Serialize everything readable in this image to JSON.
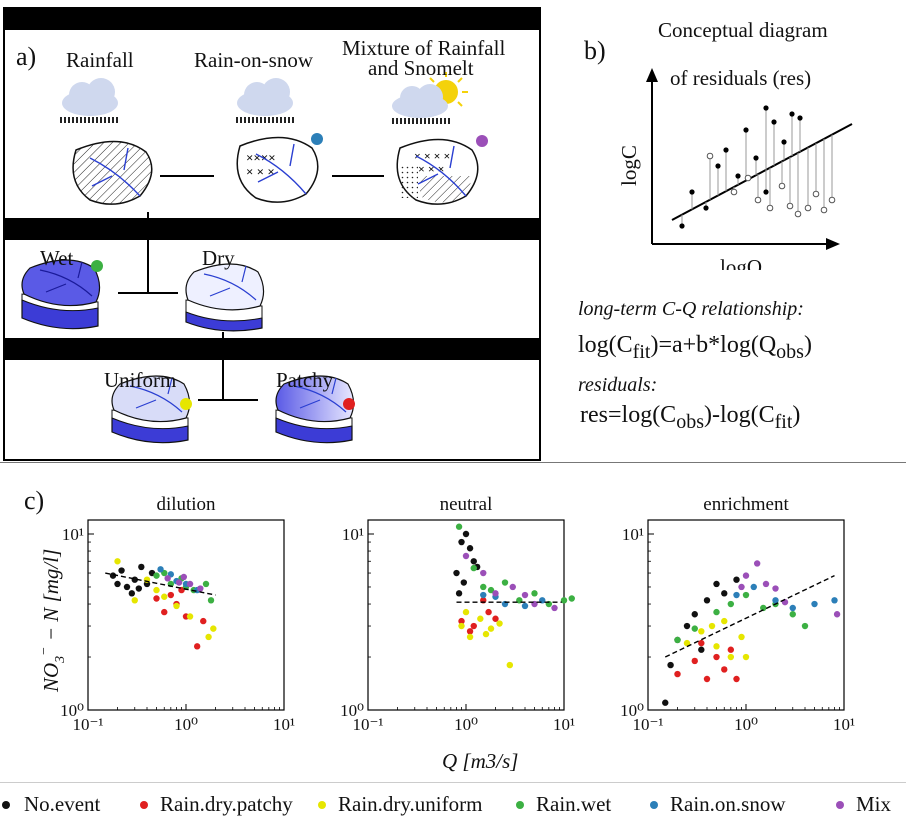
{
  "panel_a": {
    "label": "a)",
    "row1": {
      "rainfall": "Rainfall",
      "rain_on_snow": "Rain-on-snow",
      "mixture_line1": "Mixture of Rainfall",
      "mixture_line2": "and Snomelt"
    },
    "row2": {
      "wet": "Wet",
      "dry": "Dry"
    },
    "row3": {
      "uniform": "Uniform",
      "patchy": "Patchy"
    }
  },
  "panel_b": {
    "label": "b)",
    "title_line1": "Conceptual diagram",
    "title_line2": "of residuals (res)",
    "ylabel": "logC",
    "xlabel": "logQ",
    "ltr_label": "long-term C-Q relationship:",
    "eq_prefix": "log(C",
    "eq_sub1": "fit",
    "eq_mid": ")=a+b*log(Q",
    "eq_sub2": "obs",
    "eq_suffix": ")",
    "res_label": "residuals:",
    "res_prefix": "res=log(C",
    "res_sub1": "obs",
    "res_mid": ")-log(C",
    "res_sub2": "fit",
    "res_suffix": ")"
  },
  "panel_c": {
    "label": "c)",
    "ylabel": "NO3- - N [mg/l]",
    "xlabel": "Q [m3/s]"
  },
  "colors": {
    "no_event": "#111111",
    "rain_dry_patchy": "#e02020",
    "rain_dry_uniform": "#e6e600",
    "rain_wet": "#3cb043",
    "rain_on_snow": "#2c7fb8",
    "mixture": "#9b4fb8",
    "catchment_fill": "#5a5ae6"
  },
  "chart_data": [
    {
      "type": "scatter",
      "title": "dilution",
      "xscale": "log",
      "yscale": "log",
      "xlim": [
        0.1,
        10
      ],
      "ylim": [
        1,
        10
      ],
      "xticks": [
        "10⁻¹",
        "10⁰",
        "10¹"
      ],
      "yticks": [
        "10⁰",
        "10¹"
      ],
      "trend": [
        [
          0.15,
          6.0
        ],
        [
          2.0,
          4.5
        ]
      ],
      "series": [
        {
          "name": "No.event",
          "points": [
            [
              0.18,
              5.8
            ],
            [
              0.22,
              6.2
            ],
            [
              0.25,
              5.0
            ],
            [
              0.3,
              5.5
            ],
            [
              0.35,
              6.5
            ],
            [
              0.28,
              4.6
            ],
            [
              0.4,
              5.2
            ],
            [
              0.45,
              6.0
            ],
            [
              0.2,
              5.2
            ],
            [
              0.33,
              4.9
            ]
          ]
        },
        {
          "name": "Rain.dry.patchy",
          "points": [
            [
              0.6,
              3.6
            ],
            [
              0.8,
              4.0
            ],
            [
              1.0,
              3.4
            ],
            [
              1.3,
              2.3
            ],
            [
              0.5,
              4.3
            ],
            [
              0.9,
              4.8
            ],
            [
              1.5,
              3.2
            ],
            [
              0.7,
              4.5
            ]
          ]
        },
        {
          "name": "Rain.dry.uniform",
          "points": [
            [
              0.2,
              7.0
            ],
            [
              0.3,
              4.2
            ],
            [
              0.5,
              4.8
            ],
            [
              0.8,
              3.9
            ],
            [
              1.1,
              3.4
            ],
            [
              1.7,
              2.6
            ],
            [
              1.9,
              2.9
            ],
            [
              0.4,
              5.5
            ],
            [
              0.6,
              4.4
            ]
          ]
        },
        {
          "name": "Rain.wet",
          "points": [
            [
              0.5,
              5.8
            ],
            [
              0.7,
              5.2
            ],
            [
              0.9,
              5.6
            ],
            [
              1.2,
              4.8
            ],
            [
              1.6,
              5.2
            ],
            [
              1.8,
              4.2
            ],
            [
              0.6,
              6.0
            ],
            [
              1.0,
              5.0
            ]
          ]
        },
        {
          "name": "Rain.on.snow",
          "points": [
            [
              0.55,
              6.3
            ],
            [
              0.8,
              5.4
            ],
            [
              1.0,
              5.2
            ],
            [
              1.3,
              4.8
            ],
            [
              0.7,
              5.9
            ]
          ]
        },
        {
          "name": "Mixture",
          "points": [
            [
              0.65,
              5.6
            ],
            [
              0.85,
              5.3
            ],
            [
              1.1,
              5.2
            ],
            [
              1.4,
              4.9
            ],
            [
              0.95,
              5.7
            ]
          ]
        }
      ]
    },
    {
      "type": "scatter",
      "title": "neutral",
      "xscale": "log",
      "yscale": "log",
      "xlim": [
        0.1,
        10
      ],
      "ylim": [
        1,
        10
      ],
      "xticks": [
        "10⁻¹",
        "10⁰",
        "10¹"
      ],
      "yticks": [
        "10⁰",
        "10¹"
      ],
      "trend": [
        [
          0.8,
          4.1
        ],
        [
          9.5,
          4.1
        ]
      ],
      "series": [
        {
          "name": "No.event",
          "points": [
            [
              0.8,
              6.0
            ],
            [
              0.9,
              9.0
            ],
            [
              1.0,
              10.0
            ],
            [
              1.2,
              7.0
            ],
            [
              0.85,
              4.6
            ],
            [
              1.1,
              8.3
            ],
            [
              0.95,
              5.3
            ],
            [
              1.3,
              6.5
            ]
          ]
        },
        {
          "name": "Rain.dry.patchy",
          "points": [
            [
              0.9,
              3.2
            ],
            [
              1.2,
              3.0
            ],
            [
              1.5,
              4.2
            ],
            [
              2.0,
              3.3
            ],
            [
              1.1,
              2.8
            ],
            [
              1.7,
              3.6
            ]
          ]
        },
        {
          "name": "Rain.dry.uniform",
          "points": [
            [
              0.9,
              3.0
            ],
            [
              1.1,
              2.6
            ],
            [
              1.4,
              3.3
            ],
            [
              1.8,
              2.9
            ],
            [
              2.2,
              3.1
            ],
            [
              2.8,
              1.8
            ],
            [
              1.0,
              3.6
            ],
            [
              1.6,
              2.7
            ]
          ]
        },
        {
          "name": "Rain.wet",
          "points": [
            [
              0.85,
              11.0
            ],
            [
              1.2,
              6.4
            ],
            [
              1.8,
              4.8
            ],
            [
              2.5,
              5.3
            ],
            [
              3.5,
              4.2
            ],
            [
              5.0,
              4.6
            ],
            [
              7.0,
              4.0
            ],
            [
              10.0,
              4.2
            ],
            [
              12.0,
              4.3
            ],
            [
              1.5,
              5.0
            ]
          ]
        },
        {
          "name": "Rain.on.snow",
          "points": [
            [
              1.5,
              4.5
            ],
            [
              2.5,
              4.0
            ],
            [
              4.0,
              3.9
            ],
            [
              6.0,
              4.2
            ],
            [
              2.0,
              4.4
            ]
          ]
        },
        {
          "name": "Mixture",
          "points": [
            [
              1.0,
              7.5
            ],
            [
              1.5,
              6.0
            ],
            [
              2.0,
              4.6
            ],
            [
              3.0,
              5.0
            ],
            [
              5.0,
              4.0
            ],
            [
              8.0,
              3.8
            ],
            [
              4.0,
              4.5
            ]
          ]
        }
      ]
    },
    {
      "type": "scatter",
      "title": "enrichment",
      "xscale": "log",
      "yscale": "log",
      "xlim": [
        0.1,
        10
      ],
      "ylim": [
        1,
        10
      ],
      "xticks": [
        "10⁻¹",
        "10⁰",
        "10¹"
      ],
      "yticks": [
        "10⁰",
        "10¹"
      ],
      "trend": [
        [
          0.15,
          2.0
        ],
        [
          8.0,
          5.8
        ]
      ],
      "series": [
        {
          "name": "No.event",
          "points": [
            [
              0.15,
              1.1
            ],
            [
              0.17,
              1.8
            ],
            [
              0.2,
              2.5
            ],
            [
              0.25,
              3.0
            ],
            [
              0.3,
              3.5
            ],
            [
              0.4,
              4.2
            ],
            [
              0.5,
              5.2
            ],
            [
              0.6,
              4.6
            ],
            [
              0.35,
              2.2
            ],
            [
              0.8,
              5.5
            ]
          ]
        },
        {
          "name": "Rain.dry.patchy",
          "points": [
            [
              0.2,
              1.6
            ],
            [
              0.3,
              1.9
            ],
            [
              0.4,
              1.5
            ],
            [
              0.5,
              2.0
            ],
            [
              0.6,
              1.7
            ],
            [
              0.8,
              1.5
            ],
            [
              0.35,
              2.4
            ],
            [
              0.7,
              2.2
            ]
          ]
        },
        {
          "name": "Rain.dry.uniform",
          "points": [
            [
              0.25,
              2.4
            ],
            [
              0.35,
              2.8
            ],
            [
              0.5,
              2.3
            ],
            [
              0.7,
              2.0
            ],
            [
              0.9,
              2.6
            ],
            [
              1.0,
              2.0
            ],
            [
              0.45,
              3.0
            ],
            [
              0.6,
              3.2
            ]
          ]
        },
        {
          "name": "Rain.wet",
          "points": [
            [
              0.2,
              2.5
            ],
            [
              0.3,
              2.9
            ],
            [
              0.5,
              3.6
            ],
            [
              1.0,
              4.5
            ],
            [
              2.0,
              4.0
            ],
            [
              3.0,
              3.5
            ],
            [
              4.0,
              3.0
            ],
            [
              1.5,
              3.8
            ],
            [
              0.7,
              4.0
            ]
          ]
        },
        {
          "name": "Rain.on.snow",
          "points": [
            [
              0.8,
              4.5
            ],
            [
              1.2,
              5.0
            ],
            [
              2.0,
              4.2
            ],
            [
              5.0,
              4.0
            ],
            [
              8.0,
              4.2
            ],
            [
              3.0,
              3.8
            ]
          ]
        },
        {
          "name": "Mixture",
          "points": [
            [
              1.0,
              5.8
            ],
            [
              1.3,
              6.8
            ],
            [
              1.6,
              5.2
            ],
            [
              2.0,
              4.9
            ],
            [
              2.5,
              4.1
            ],
            [
              8.5,
              3.5
            ],
            [
              0.9,
              5.0
            ]
          ]
        }
      ]
    }
  ],
  "legend": [
    "No.event",
    "Rain.dry.patchy",
    "Rain.dry.uniform",
    "Rain.wet",
    "Rain.on.snow",
    "Mix"
  ]
}
